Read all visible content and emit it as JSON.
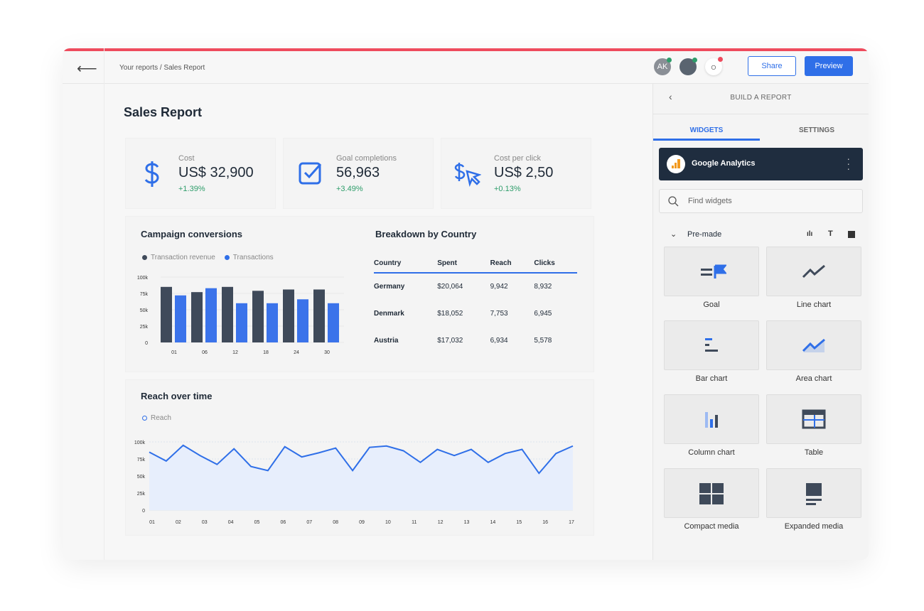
{
  "header": {
    "breadcrumb": "Your reports / Sales Report",
    "avatar_initials": "AK",
    "share": "Share",
    "preview": "Preview"
  },
  "page_title": "Sales Report",
  "kpis": [
    {
      "label": "Cost",
      "value": "US$ 32,900",
      "delta": "+1.39%",
      "icon": "dollar-icon"
    },
    {
      "label": "Goal completions",
      "value": "56,963",
      "delta": "+3.49%",
      "icon": "checkbox-icon"
    },
    {
      "label": "Cost per click",
      "value": "US$ 2,50",
      "delta": "+0.13%",
      "icon": "dollar-cursor-icon"
    }
  ],
  "campaign": {
    "title": "Campaign conversions",
    "legend": [
      "Transaction revenue",
      "Transactions"
    ]
  },
  "breakdown": {
    "title": "Breakdown by Country",
    "columns": [
      "Country",
      "Spent",
      "Reach",
      "Clicks"
    ],
    "rows": [
      [
        "Germany",
        "$20,064",
        "9,942",
        "8,932"
      ],
      [
        "Denmark",
        "$18,052",
        "7,753",
        "6,945"
      ],
      [
        "Austria",
        "$17,032",
        "6,934",
        "5,578"
      ]
    ]
  },
  "reach": {
    "title": "Reach over time",
    "legend": "Reach"
  },
  "colors": {
    "accent": "#2f6fe8",
    "dark": "#3f4a5a",
    "red": "#ee4b5d",
    "green": "#2e9d6a"
  },
  "chart_data": [
    {
      "type": "bar",
      "title": "Campaign conversions",
      "categories": [
        "01",
        "06",
        "12",
        "18",
        "24",
        "30"
      ],
      "series": [
        {
          "name": "Transaction revenue",
          "values": [
            85,
            77,
            85,
            79,
            81,
            81
          ]
        },
        {
          "name": "Transactions",
          "values": [
            72,
            83,
            60,
            60,
            66,
            60
          ]
        }
      ],
      "ylim": [
        0,
        100
      ],
      "yticks": [
        "0",
        "25k",
        "50k",
        "75k",
        "100k"
      ],
      "legend": "top-left",
      "grid": true
    },
    {
      "type": "area",
      "title": "Reach over time",
      "xticks": [
        "01",
        "02",
        "03",
        "04",
        "05",
        "06",
        "07",
        "08",
        "09",
        "10",
        "11",
        "12",
        "13",
        "14",
        "15",
        "16",
        "17"
      ],
      "series": [
        {
          "name": "Reach",
          "values": [
            85,
            72,
            95,
            80,
            67,
            90,
            64,
            58,
            93,
            78,
            84,
            91,
            58,
            92,
            94,
            87,
            70,
            89,
            80,
            89,
            70,
            83,
            89,
            54,
            83,
            94
          ]
        }
      ],
      "ylim": [
        0,
        100
      ],
      "yticks": [
        "0",
        "25k",
        "50k",
        "75k",
        "100k"
      ],
      "legend": "top-left",
      "grid": true
    }
  ],
  "panel": {
    "title": "BUILD A REPORT",
    "tabs": [
      "WIDGETS",
      "SETTINGS"
    ],
    "source": "Google Analytics",
    "search_placeholder": "Find widgets",
    "section": "Pre-made",
    "widgets": [
      "Goal",
      "Line chart",
      "Bar chart",
      "Area chart",
      "Column chart",
      "Table",
      "Compact media",
      "Expanded media"
    ]
  }
}
